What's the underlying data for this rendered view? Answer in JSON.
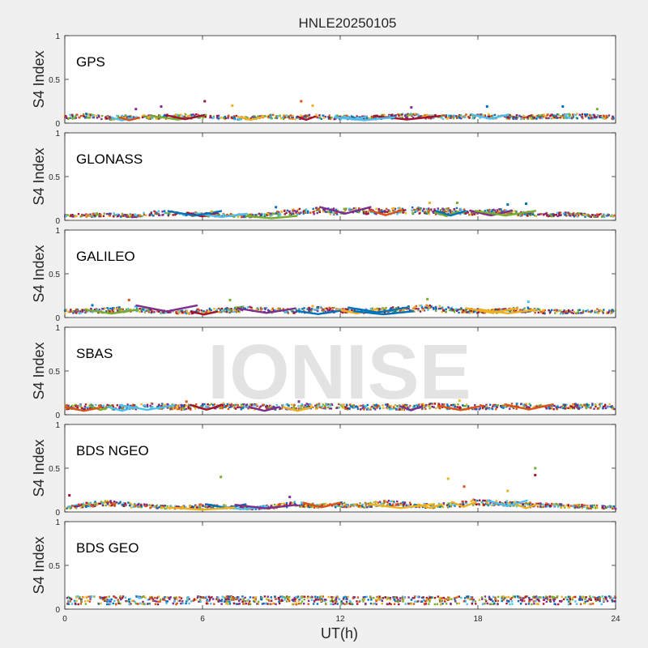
{
  "title": "HNLE20250105",
  "watermark": "IONISE",
  "chart_data": [
    {
      "type": "scatter",
      "label": "GPS",
      "ylabel": "S4 Index",
      "ylim": [
        0,
        1
      ],
      "yticks": [
        "1",
        "0.5",
        "0"
      ],
      "xlim": [
        0,
        24
      ],
      "baseline": [
        0.08,
        0.1,
        0.07,
        0.09,
        0.08,
        0.1,
        0.09,
        0.08,
        0.07,
        0.09,
        0.08,
        0.09,
        0.08,
        0.07,
        0.09,
        0.1,
        0.09,
        0.08,
        0.1,
        0.09,
        0.08,
        0.09,
        0.1,
        0.09,
        0.08
      ],
      "spikes": [
        [
          6.1,
          0.25
        ],
        [
          10.3,
          0.25
        ],
        [
          4.2,
          0.19
        ],
        [
          18.4,
          0.19
        ],
        [
          15.1,
          0.18
        ],
        [
          21.7,
          0.19
        ],
        [
          3.1,
          0.16
        ],
        [
          7.3,
          0.2
        ],
        [
          10.8,
          0.2
        ],
        [
          23.2,
          0.16
        ]
      ]
    },
    {
      "type": "scatter",
      "label": "GLONASS",
      "ylabel": "S4 Index",
      "ylim": [
        0,
        1
      ],
      "yticks": [
        "1",
        "0.5",
        "0"
      ],
      "xlim": [
        0,
        24
      ],
      "baseline": [
        0.06,
        0.07,
        0.08,
        0.06,
        0.1,
        0.09,
        0.08,
        0.07,
        0.06,
        0.08,
        0.12,
        0.13,
        0.12,
        0.13,
        0.12,
        0.14,
        0.12,
        0.13,
        0.1,
        0.12,
        0.09,
        0.08,
        0.08,
        0.07,
        0.06
      ],
      "spikes": [
        [
          15.9,
          0.2
        ],
        [
          17.1,
          0.2
        ],
        [
          19.3,
          0.18
        ],
        [
          20.1,
          0.19
        ],
        [
          9.2,
          0.15
        ],
        [
          6.4,
          0.1
        ]
      ]
    },
    {
      "type": "scatter",
      "label": "GALILEO",
      "ylabel": "S4 Index",
      "ylim": [
        0,
        1
      ],
      "yticks": [
        "1",
        "0.5",
        "0"
      ],
      "xlim": [
        0,
        24
      ],
      "baseline": [
        0.08,
        0.09,
        0.1,
        0.12,
        0.09,
        0.07,
        0.09,
        0.1,
        0.12,
        0.1,
        0.09,
        0.11,
        0.1,
        0.09,
        0.1,
        0.12,
        0.13,
        0.1,
        0.09,
        0.09,
        0.11,
        0.08,
        0.08,
        0.09,
        0.08
      ],
      "spikes": [
        [
          2.8,
          0.2
        ],
        [
          7.2,
          0.2
        ],
        [
          15.8,
          0.21
        ],
        [
          20.2,
          0.18
        ],
        [
          10.8,
          0.13
        ],
        [
          1.2,
          0.14
        ]
      ]
    },
    {
      "type": "scatter",
      "label": "SBAS",
      "ylabel": "S4 Index",
      "ylim": [
        0,
        1
      ],
      "yticks": [
        "1",
        "0.5",
        "0"
      ],
      "xlim": [
        0,
        24
      ],
      "baseline": [
        0.1,
        0.11,
        0.1,
        0.11,
        0.12,
        0.1,
        0.11,
        0.12,
        0.11,
        0.1,
        0.11,
        0.12,
        0.11,
        0.1,
        0.11,
        0.1,
        0.12,
        0.11,
        0.1,
        0.11,
        0.12,
        0.1,
        0.11,
        0.12,
        0.11
      ],
      "spikes": [
        [
          17.2,
          0.16
        ],
        [
          5.3,
          0.15
        ],
        [
          10.2,
          0.15
        ]
      ]
    },
    {
      "type": "scatter",
      "label": "BDS NGEO",
      "ylabel": "S4 Index",
      "ylim": [
        0,
        1
      ],
      "yticks": [
        "1",
        "0.5",
        "0"
      ],
      "xlim": [
        0,
        24
      ],
      "baseline": [
        0.05,
        0.1,
        0.12,
        0.09,
        0.07,
        0.06,
        0.08,
        0.07,
        0.05,
        0.07,
        0.11,
        0.08,
        0.1,
        0.09,
        0.12,
        0.1,
        0.08,
        0.1,
        0.14,
        0.12,
        0.1,
        0.09,
        0.08,
        0.07,
        0.06
      ],
      "spikes": [
        [
          20.5,
          0.5
        ],
        [
          20.5,
          0.42
        ],
        [
          6.8,
          0.4
        ],
        [
          16.7,
          0.38
        ],
        [
          17.4,
          0.29
        ],
        [
          19.3,
          0.24
        ],
        [
          0.2,
          0.19
        ],
        [
          9.8,
          0.17
        ]
      ]
    },
    {
      "type": "scatter",
      "label": "BDS GEO",
      "ylabel": "S4 Index",
      "ylim": [
        0,
        1
      ],
      "yticks": [
        "1",
        "0.5",
        "0"
      ],
      "xlim": [
        0,
        24
      ],
      "baseline": [
        0.13,
        0.14,
        0.13,
        0.14,
        0.13,
        0.14,
        0.13,
        0.14,
        0.13,
        0.14,
        0.13,
        0.13,
        0.14,
        0.13,
        0.14,
        0.13,
        0.14,
        0.13,
        0.14,
        0.13,
        0.14,
        0.13,
        0.14,
        0.13,
        0.14
      ],
      "spikes": [],
      "bands": [
        0.06,
        0.09,
        0.11,
        0.13,
        0.14
      ]
    }
  ],
  "xaxis": {
    "label": "UT(h)",
    "ticks": [
      "0",
      "6",
      "12",
      "18",
      "24"
    ]
  },
  "series_colors": [
    "#0072BD",
    "#D95319",
    "#EDB120",
    "#7E2F8E",
    "#77AC30",
    "#4DBEEE",
    "#A2142F"
  ]
}
